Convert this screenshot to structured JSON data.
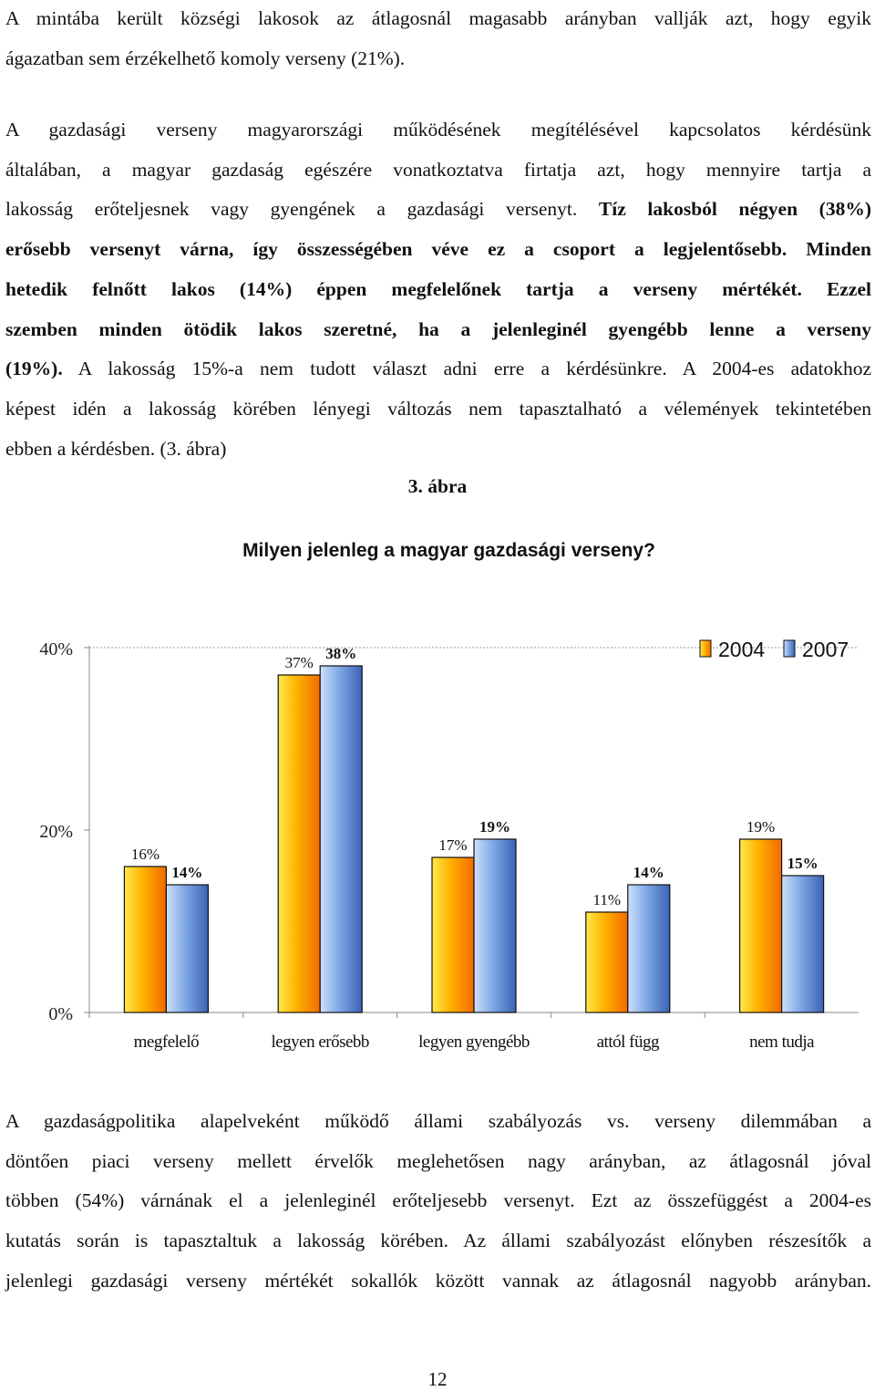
{
  "paragraph1": {
    "lines": [
      "A mintába került községi lakosok az átlagosnál magasabb arányban vallják azt, hogy egyik",
      "ágazatban sem érzékelhető komoly verseny (21%)."
    ]
  },
  "paragraph2": {
    "line1": "A gazdasági verseny magyarországi működésének megítélésével kapcsolatos kérdésünk",
    "line2": "általában, a magyar gazdaság egészére vonatkoztatva firtatja azt, hogy mennyire tartja a",
    "line3_normal": "lakosság erőteljesnek vagy gyengének a gazdasági versenyt. ",
    "line3_bold": "Tíz lakosból négyen (38%)",
    "line4_bold": "erősebb versenyt várna, így összességében véve ez a csoport a legjelentősebb. Minden",
    "line5_bold": "hetedik felnőtt lakos (14%) éppen megfelelőnek tartja a verseny mértékét. Ezzel",
    "line6_bold": "szemben minden ötödik lakos szeretné, ha a jelenleginél gyengébb lenne a verseny",
    "line7_bold": "(19%).",
    "line7_normal": " A lakosság 15%-a nem tudott választ adni erre a kérdésünkre. A 2004-es adatokhoz",
    "line8": "képest idén a lakosság körében lényegi változás nem tapasztalható a vélemények tekintetében",
    "line9": "ebben a kérdésben. (3. ábra)"
  },
  "figure": {
    "caption": "3. ábra",
    "title": "Milyen jelenleg a magyar gazdasági verseny?"
  },
  "chart_data": {
    "type": "bar",
    "title": "Milyen jelenleg a magyar gazdasági verseny?",
    "categories": [
      "megfelelő",
      "legyen erősebb",
      "legyen gyengébb",
      "attól függ",
      "nem tudja"
    ],
    "series": [
      {
        "name": "2004",
        "values": [
          16,
          37,
          17,
          11,
          19
        ],
        "labels": [
          "16%",
          "37%",
          "17%",
          "11%",
          "19%"
        ],
        "color": "#FFB800"
      },
      {
        "name": "2007",
        "values": [
          14,
          38,
          19,
          14,
          15
        ],
        "labels": [
          "14%",
          "38%",
          "19%",
          "14%",
          "15%"
        ],
        "color": "#7AA7E6"
      }
    ],
    "yticks": [
      "0%",
      "20%",
      "40%"
    ],
    "ylim": [
      0,
      40
    ],
    "grid": false,
    "legend_position": "top-right"
  },
  "paragraph3": {
    "lines": [
      "A gazdaságpolitika alapelveként működő állami szabályozás vs. verseny dilemmában a",
      "döntően piaci verseny mellett érvelők meglehetősen nagy arányban, az átlagosnál jóval",
      "többen (54%) várnának el a jelenleginél erőteljesebb versenyt. Ezt az összefüggést a 2004-es",
      "kutatás során is tapasztaltuk a lakosság körében. Az állami szabályozást előnyben részesítők a",
      "jelenlegi gazdasági verseny mértékét sokallók között vannak az átlagosnál nagyobb arányban."
    ]
  },
  "page_number": "12"
}
